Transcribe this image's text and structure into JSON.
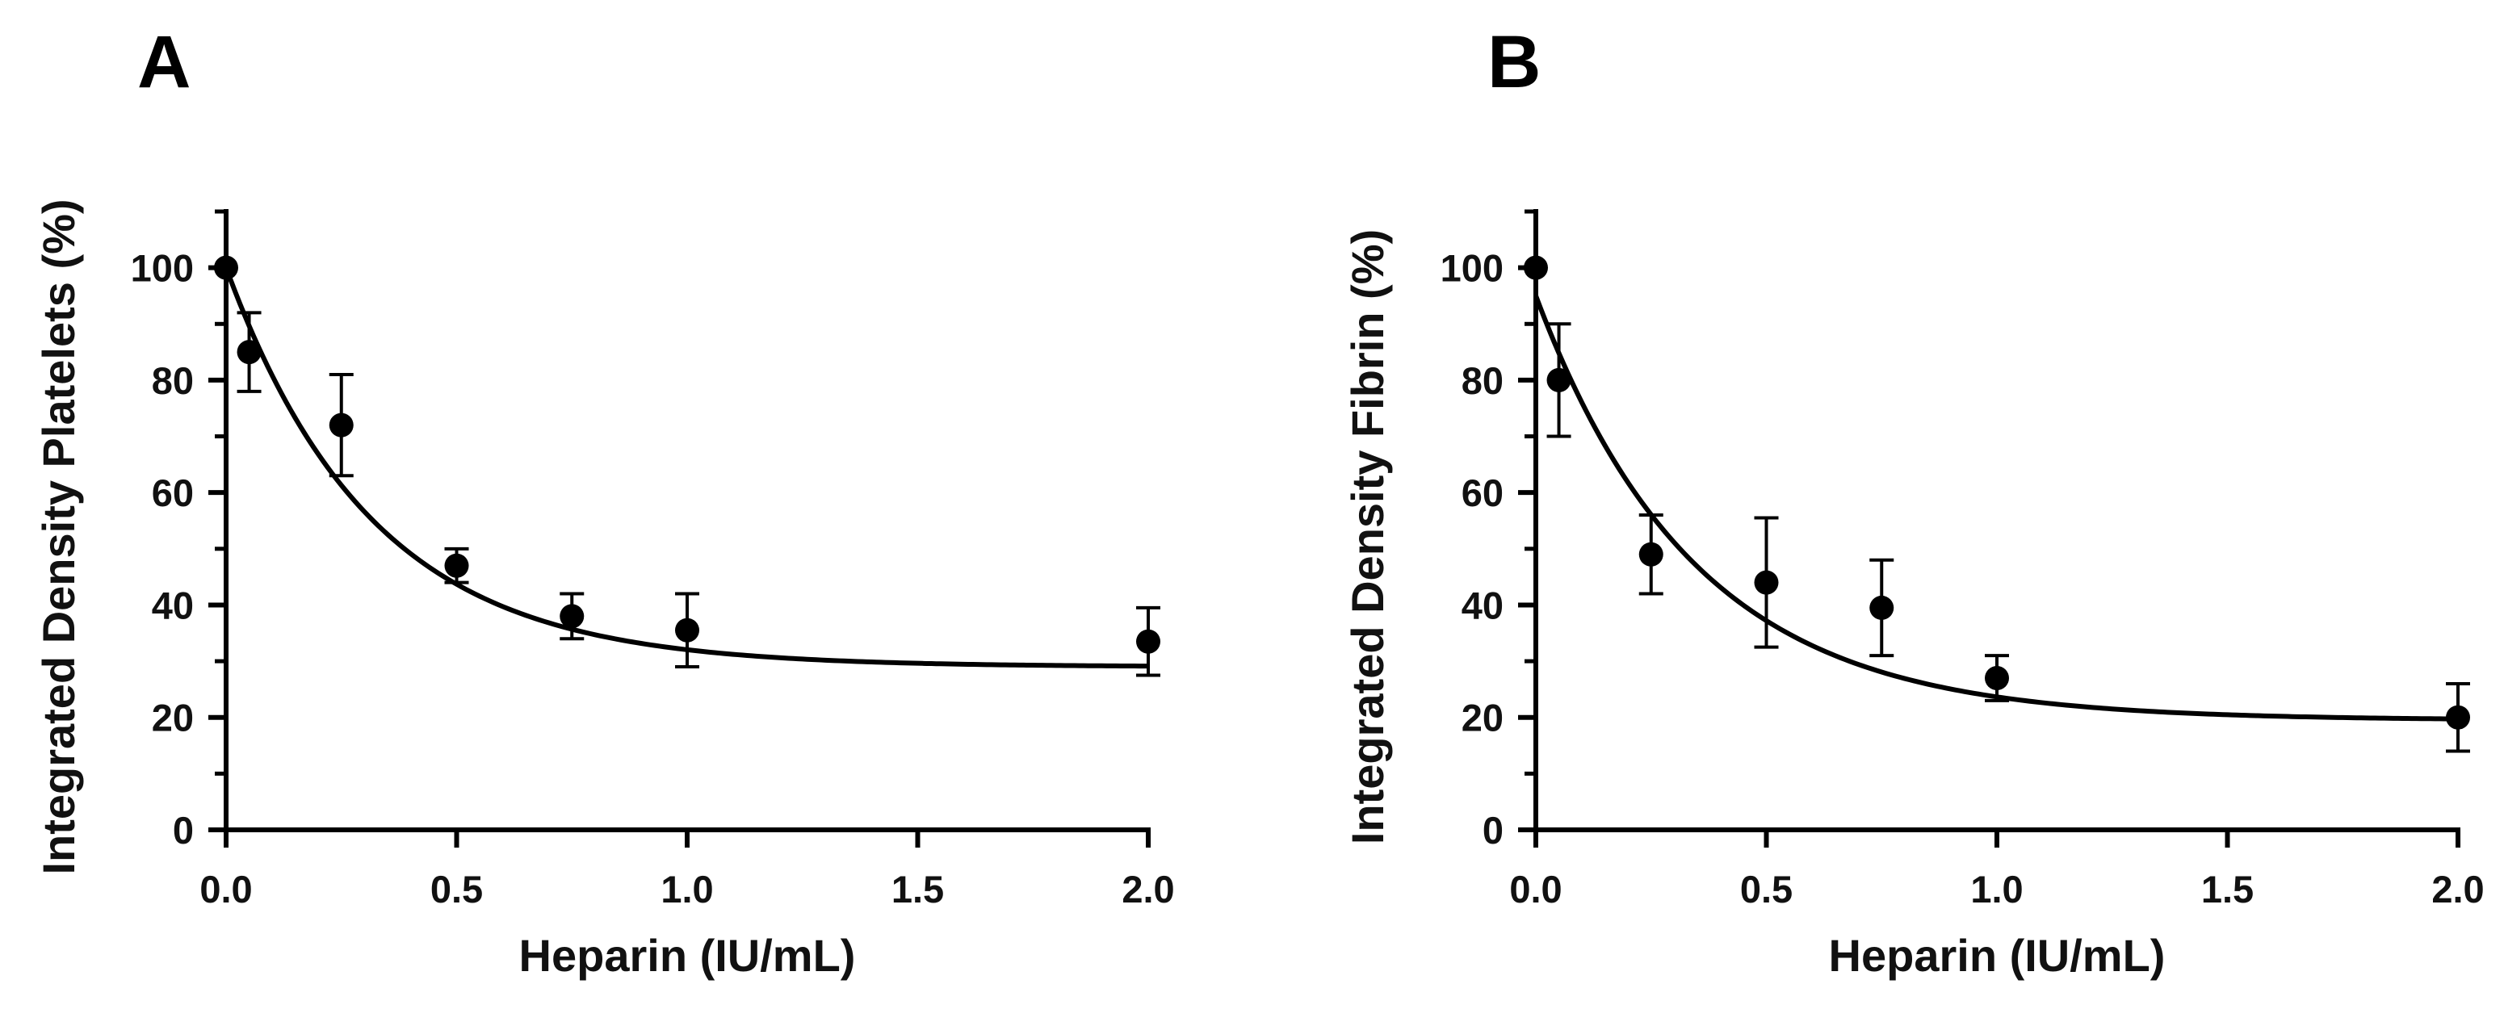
{
  "figure": {
    "panels": [
      "A",
      "B"
    ]
  },
  "colors": {
    "ink": "#000000",
    "text": "#111111",
    "background": "#ffffff"
  },
  "chart_data": [
    {
      "panel": "A",
      "type": "scatter",
      "title": "",
      "xlabel": "Heparin (IU/mL)",
      "ylabel": "Integrated Density Platelets (%)",
      "xlim": [
        0,
        2.0
      ],
      "ylim": [
        0,
        110
      ],
      "xticks": [
        0.0,
        0.5,
        1.0,
        1.5,
        2.0
      ],
      "xtick_labels": [
        "0.0",
        "0.5",
        "1.0",
        "1.5",
        "2.0"
      ],
      "yticks": [
        0,
        20,
        40,
        60,
        80,
        100
      ],
      "ytick_labels": [
        "0",
        "20",
        "40",
        "60",
        "80",
        "100"
      ],
      "y_minor_ticks": [
        10,
        30,
        50,
        70,
        90,
        110
      ],
      "grid": false,
      "points": [
        {
          "x": 0.0,
          "y": 100,
          "err": 0
        },
        {
          "x": 0.05,
          "y": 85,
          "err": 7
        },
        {
          "x": 0.25,
          "y": 72,
          "err": 9
        },
        {
          "x": 0.5,
          "y": 47,
          "err": 3
        },
        {
          "x": 0.75,
          "y": 38,
          "err": 4
        },
        {
          "x": 1.0,
          "y": 35.5,
          "err": 6.5
        },
        {
          "x": 2.0,
          "y": 33.5,
          "err": 6
        }
      ],
      "fit": {
        "model": "one-phase exponential decay",
        "y0": 100,
        "plateau": 29,
        "k": 3.15
      }
    },
    {
      "panel": "B",
      "type": "scatter",
      "title": "",
      "xlabel": "Heparin (IU/mL)",
      "ylabel": "Integrated Density Fibrin (%)",
      "xlim": [
        0,
        2.0
      ],
      "ylim": [
        0,
        110
      ],
      "xticks": [
        0.0,
        0.5,
        1.0,
        1.5,
        2.0
      ],
      "xtick_labels": [
        "0.0",
        "0.5",
        "1.0",
        "1.5",
        "2.0"
      ],
      "yticks": [
        0,
        20,
        40,
        60,
        80,
        100
      ],
      "ytick_labels": [
        "0",
        "20",
        "40",
        "60",
        "80",
        "100"
      ],
      "y_minor_ticks": [
        10,
        30,
        50,
        70,
        90,
        110
      ],
      "grid": false,
      "points": [
        {
          "x": 0.0,
          "y": 100,
          "err": 0
        },
        {
          "x": 0.05,
          "y": 80,
          "err": 10
        },
        {
          "x": 0.25,
          "y": 49,
          "err": 7
        },
        {
          "x": 0.5,
          "y": 44,
          "err": 11.5
        },
        {
          "x": 0.75,
          "y": 39.5,
          "err": 8.5
        },
        {
          "x": 1.0,
          "y": 27,
          "err": 4
        },
        {
          "x": 2.0,
          "y": 20,
          "err": 6
        }
      ],
      "fit": {
        "model": "one-phase exponential decay",
        "y0": 95,
        "plateau": 19.5,
        "k": 2.9
      }
    }
  ]
}
